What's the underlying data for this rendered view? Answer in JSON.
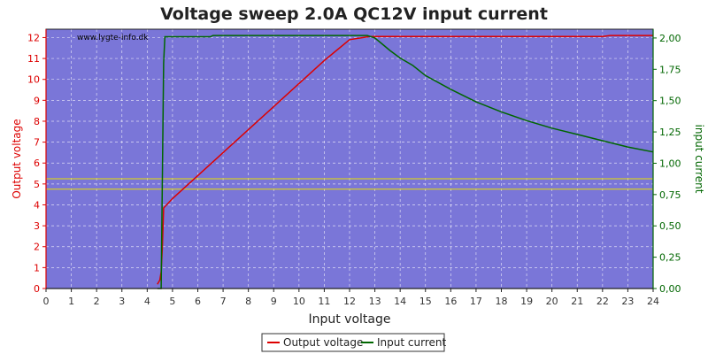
{
  "chart_data": {
    "type": "line",
    "title": "Voltage sweep 2.0A QC12V input current",
    "xlabel": "Input voltage",
    "ylabel": "Output voltage",
    "y2label": "input current",
    "watermark": "www.lygte-info.dk",
    "xlim": [
      0,
      24
    ],
    "ylim": [
      0,
      12.4
    ],
    "y2lim": [
      0,
      2.07
    ],
    "x_ticks": [
      "0",
      "1",
      "2",
      "3",
      "4",
      "5",
      "6",
      "7",
      "8",
      "9",
      "10",
      "11",
      "12",
      "13",
      "14",
      "15",
      "16",
      "17",
      "18",
      "19",
      "20",
      "21",
      "22",
      "23",
      "24"
    ],
    "y_ticks": [
      "0",
      "1",
      "2",
      "3",
      "4",
      "5",
      "6",
      "7",
      "8",
      "9",
      "10",
      "11",
      "12"
    ],
    "y2_ticks": [
      "0,00",
      "0,25",
      "0,50",
      "0,75",
      "1,00",
      "1,25",
      "1,50",
      "1,75",
      "2,00"
    ],
    "y2_tick_values": [
      0,
      0.25,
      0.5,
      0.75,
      1.0,
      1.25,
      1.5,
      1.75,
      2.0
    ],
    "grid": true,
    "legend_position": "bottom-center",
    "reference_lines": [
      {
        "axis": "y",
        "value": 5.25,
        "color": "#e8e000"
      },
      {
        "axis": "y",
        "value": 4.75,
        "color": "#e8e000"
      }
    ],
    "series": [
      {
        "name": "Output voltage",
        "axis": "left",
        "color": "#dd0000",
        "x": [
          4.4,
          4.5,
          4.55,
          4.6,
          4.65,
          5.0,
          6.0,
          7.0,
          8.0,
          9.0,
          10.0,
          11.0,
          12.0,
          12.8,
          13.0,
          16.0,
          20.0,
          22.0,
          22.3,
          24.0
        ],
        "y": [
          0.2,
          0.4,
          0.8,
          2.0,
          3.85,
          4.3,
          5.4,
          6.5,
          7.6,
          8.7,
          9.8,
          10.9,
          11.9,
          12.05,
          12.05,
          12.05,
          12.05,
          12.05,
          12.1,
          12.1
        ]
      },
      {
        "name": "Input current",
        "axis": "right",
        "color": "#006600",
        "x": [
          4.4,
          4.55,
          4.65,
          4.7,
          6.5,
          6.6,
          12.7,
          13.0,
          13.3,
          13.6,
          14.0,
          14.5,
          15.0,
          16.0,
          17.0,
          18.0,
          19.0,
          20.0,
          21.0,
          22.0,
          23.0,
          24.0
        ],
        "y": [
          0.0,
          0.0,
          1.8,
          2.01,
          2.01,
          2.02,
          2.02,
          2.0,
          1.95,
          1.9,
          1.84,
          1.78,
          1.7,
          1.59,
          1.49,
          1.41,
          1.34,
          1.28,
          1.23,
          1.18,
          1.13,
          1.09
        ]
      }
    ]
  },
  "colors": {
    "plot_background": "#7a76d8",
    "grid": "#ffffff",
    "left_axis": "#dd0000",
    "right_axis": "#006600",
    "frame": "#222222"
  }
}
